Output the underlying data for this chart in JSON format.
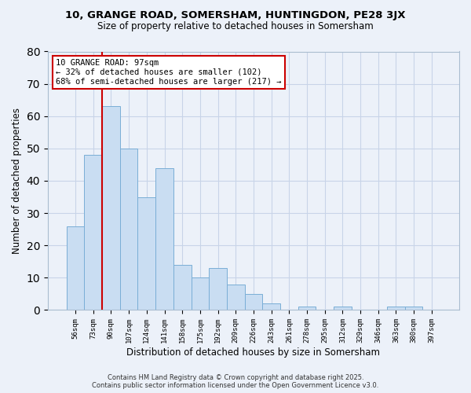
{
  "title1": "10, GRANGE ROAD, SOMERSHAM, HUNTINGDON, PE28 3JX",
  "title2": "Size of property relative to detached houses in Somersham",
  "xlabel": "Distribution of detached houses by size in Somersham",
  "ylabel": "Number of detached properties",
  "bar_labels": [
    "56sqm",
    "73sqm",
    "90sqm",
    "107sqm",
    "124sqm",
    "141sqm",
    "158sqm",
    "175sqm",
    "192sqm",
    "209sqm",
    "226sqm",
    "243sqm",
    "261sqm",
    "278sqm",
    "295sqm",
    "312sqm",
    "329sqm",
    "346sqm",
    "363sqm",
    "380sqm",
    "397sqm"
  ],
  "bar_values": [
    26,
    48,
    63,
    50,
    35,
    44,
    14,
    10,
    13,
    8,
    5,
    2,
    0,
    1,
    0,
    1,
    0,
    0,
    1,
    1,
    0
  ],
  "bar_color": "#c9ddf2",
  "bar_edge_color": "#7aaed6",
  "annotation_line_color": "#cc0000",
  "annotation_box_text": "10 GRANGE ROAD: 97sqm\n← 32% of detached houses are smaller (102)\n68% of semi-detached houses are larger (217) →",
  "annotation_box_edge_color": "#cc0000",
  "ylim": [
    0,
    80
  ],
  "yticks": [
    0,
    10,
    20,
    30,
    40,
    50,
    60,
    70,
    80
  ],
  "grid_color": "#c8d4e8",
  "bg_color": "#ecf1f9",
  "footer1": "Contains HM Land Registry data © Crown copyright and database right 2025.",
  "footer2": "Contains public sector information licensed under the Open Government Licence v3.0."
}
